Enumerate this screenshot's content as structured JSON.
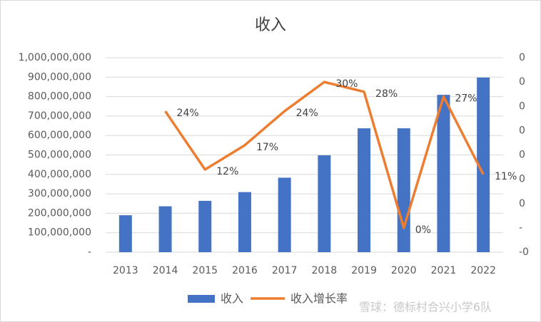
{
  "chart_data": {
    "type": "combo",
    "title": "收入",
    "categories": [
      "2013",
      "2014",
      "2015",
      "2016",
      "2017",
      "2018",
      "2019",
      "2020",
      "2021",
      "2022"
    ],
    "series": [
      {
        "name": "收入",
        "type": "bar",
        "color": "#4472c4",
        "values": [
          190000000,
          236000000,
          264000000,
          309000000,
          383000000,
          498000000,
          637000000,
          637000000,
          809000000,
          898000000
        ]
      },
      {
        "name": "收入增长率",
        "type": "line",
        "axis": "y2",
        "color": "#ed7d31",
        "values": [
          null,
          0.24,
          0.12,
          0.17,
          0.24,
          0.3,
          0.28,
          0.0,
          0.27,
          0.11
        ],
        "value_labels": [
          null,
          "24%",
          "12%",
          "17%",
          "24%",
          "30%",
          "28%",
          "0%",
          "27%",
          "11%"
        ]
      }
    ],
    "ylim": [
      0,
      1000000000
    ],
    "yticks": [
      {
        "value": 0,
        "label": "-"
      },
      {
        "value": 100000000,
        "label": "100,000,000"
      },
      {
        "value": 200000000,
        "label": "200,000,000"
      },
      {
        "value": 300000000,
        "label": "300,000,000"
      },
      {
        "value": 400000000,
        "label": "400,000,000"
      },
      {
        "value": 500000000,
        "label": "500,000,000"
      },
      {
        "value": 600000000,
        "label": "600,000,000"
      },
      {
        "value": 700000000,
        "label": "700,000,000"
      },
      {
        "value": 800000000,
        "label": "800,000,000"
      },
      {
        "value": 900000000,
        "label": "900,000,000"
      },
      {
        "value": 1000000000,
        "label": "1,000,000,000"
      }
    ],
    "y2lim": [
      -0.05,
      0.35
    ],
    "y2ticks": [
      {
        "value": -0.05,
        "label": "-0"
      },
      {
        "value": 0,
        "label": "-"
      },
      {
        "value": 0.05,
        "label": "0"
      },
      {
        "value": 0.1,
        "label": "0"
      },
      {
        "value": 0.15,
        "label": "0"
      },
      {
        "value": 0.2,
        "label": "0"
      },
      {
        "value": 0.25,
        "label": "0"
      },
      {
        "value": 0.3,
        "label": "0"
      },
      {
        "value": 0.35,
        "label": "0"
      }
    ],
    "grid": true,
    "legend": "bottom",
    "watermark": "雪球：德标村合兴小学6队"
  }
}
